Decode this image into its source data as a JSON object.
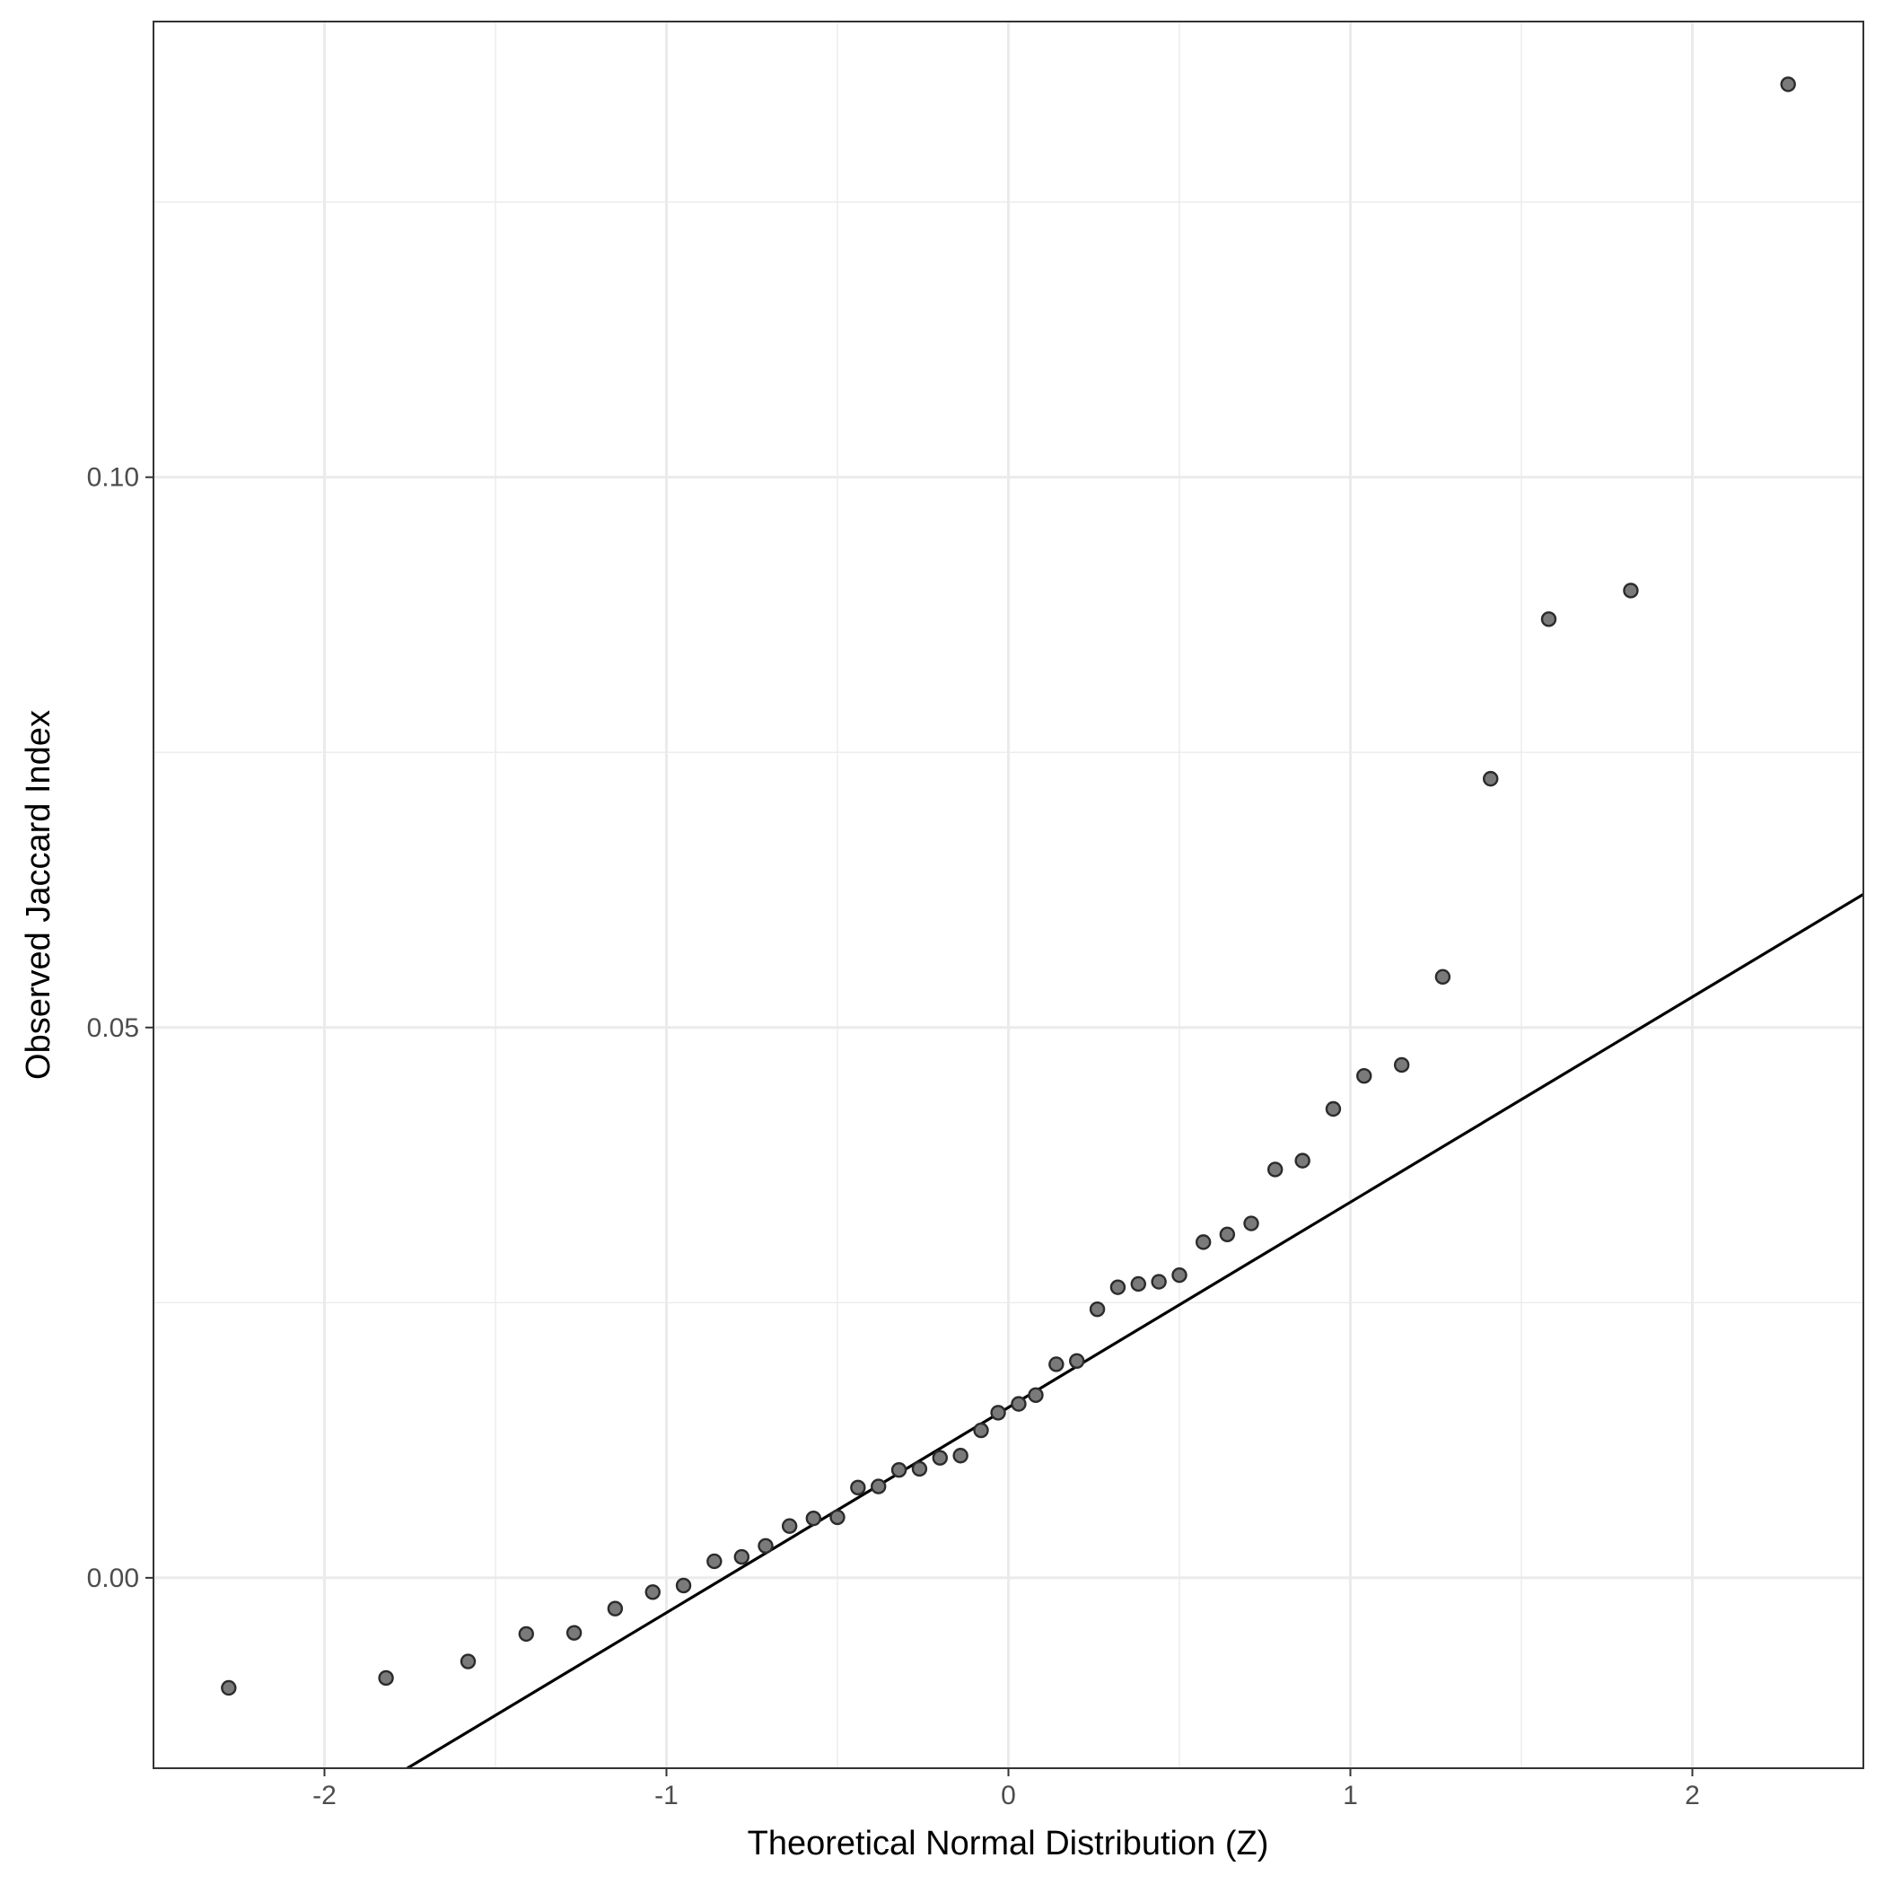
{
  "chart_data": {
    "type": "scatter",
    "title": "",
    "xlabel": "Theoretical Normal Distribution (Z)",
    "ylabel": "Observed Jaccard Index",
    "xlim": [
      -2.5,
      2.5
    ],
    "ylim": [
      -0.0173,
      0.1414
    ],
    "x_ticks": [
      -2,
      -1,
      0,
      1,
      2
    ],
    "x_tick_labels": [
      "-2",
      "-1",
      "0",
      "1",
      "2"
    ],
    "y_ticks": [
      0.0,
      0.05,
      0.1
    ],
    "y_tick_labels": [
      "0.00",
      "0.05",
      "0.10"
    ],
    "x_minor_ticks": [
      -1.5,
      -0.5,
      0.5,
      1.5
    ],
    "y_minor_ticks": [
      0.025,
      0.075,
      0.125
    ],
    "grid": true,
    "reference_line": {
      "slope": 0.01865,
      "intercept": 0.01548
    },
    "colors": {
      "point_fill": "#7a7a7a",
      "point_stroke": "#2b2b2b",
      "line": "#000000",
      "grid": "#ebebeb",
      "panel_border": "#333333"
    },
    "points": {
      "x": [
        -2.28,
        -1.82,
        -1.58,
        -1.41,
        -1.27,
        -1.15,
        -1.04,
        -0.95,
        -0.86,
        -0.78,
        -0.71,
        -0.64,
        -0.57,
        -0.5,
        -0.44,
        -0.38,
        -0.32,
        -0.26,
        -0.2,
        -0.14,
        -0.08,
        -0.03,
        0.03,
        0.08,
        0.14,
        0.2,
        0.26,
        0.32,
        0.38,
        0.44,
        0.5,
        0.57,
        0.64,
        0.71,
        0.78,
        0.86,
        0.95,
        1.04,
        1.15,
        1.27,
        1.41,
        1.58,
        1.82,
        2.28
      ],
      "y": [
        -0.01,
        -0.0091,
        -0.0076,
        -0.0051,
        -0.005,
        -0.0028,
        -0.0013,
        -0.0007,
        0.0015,
        0.0019,
        0.0029,
        0.0047,
        0.0054,
        0.0055,
        0.0082,
        0.0083,
        0.0098,
        0.0099,
        0.0109,
        0.0111,
        0.0134,
        0.015,
        0.0158,
        0.0166,
        0.0194,
        0.0197,
        0.0244,
        0.0264,
        0.0267,
        0.0269,
        0.0275,
        0.0305,
        0.0312,
        0.0322,
        0.0371,
        0.0379,
        0.0426,
        0.0456,
        0.0466,
        0.0546,
        0.0726,
        0.0871,
        0.0897,
        0.1357
      ]
    }
  }
}
